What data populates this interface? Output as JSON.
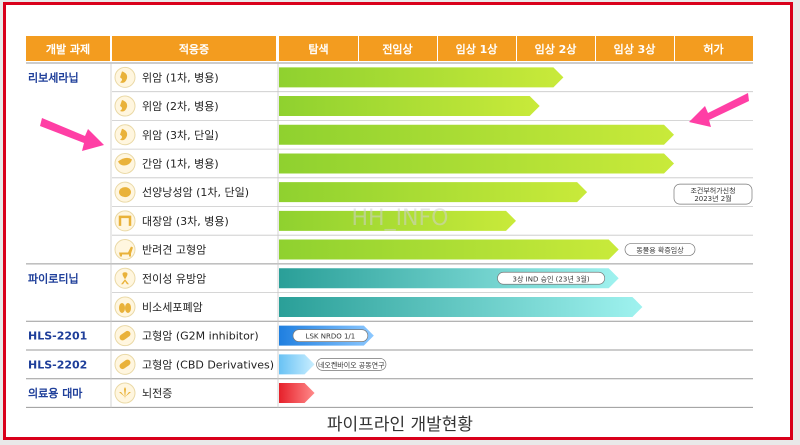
{
  "chart_data": {
    "type": "bar",
    "title": "",
    "caption": "파이프라인 개발현황",
    "watermark": "HH_INFO",
    "header": {
      "project": "개발 과제",
      "indication": "적응증"
    },
    "stages": [
      "탐색",
      "전임상",
      "임상 1상",
      "임상 2상",
      "임상 3상",
      "허가"
    ],
    "rows": [
      {
        "project": "리보세라닙",
        "indication": "위암 (1차, 병용)",
        "icon": "stomach-icon",
        "progress": 3.6,
        "color": "green"
      },
      {
        "project": "",
        "indication": "위암 (2차, 병용)",
        "icon": "stomach-icon",
        "progress": 3.3,
        "color": "green"
      },
      {
        "project": "",
        "indication": "위암 (3차, 단일)",
        "icon": "stomach-icon",
        "progress": 5.0,
        "color": "green"
      },
      {
        "project": "",
        "indication": "간암 (1차, 병용)",
        "icon": "liver-icon",
        "progress": 5.0,
        "color": "green"
      },
      {
        "project": "",
        "indication": "선양낭성암 (1차, 단일)",
        "icon": "gland-icon",
        "progress": 3.9,
        "color": "green",
        "note": [
          "조건부허가신청",
          "2023년 2월"
        ]
      },
      {
        "project": "",
        "indication": "대장암 (3차, 병용)",
        "icon": "colon-icon",
        "progress": 3.0,
        "color": "green"
      },
      {
        "project": "",
        "indication": "반려견 고형암",
        "icon": "dog-icon",
        "progress": 4.3,
        "color": "green",
        "note": [
          "동물용 확증임상"
        ]
      },
      {
        "project": "파이로티닙",
        "indication": "전이성 유방암",
        "icon": "ribbon-icon",
        "progress": 4.3,
        "color": "teal",
        "label": "3상 IND 승인 (23년 3월)"
      },
      {
        "project": "",
        "indication": "비소세포폐암",
        "icon": "lung-icon",
        "progress": 4.6,
        "color": "teal"
      },
      {
        "project": "HLS-2201",
        "indication": "고형암 (G2M inhibitor)",
        "icon": "pill-icon",
        "progress": 1.2,
        "color": "blue",
        "label": "LSK NRDO 1/1"
      },
      {
        "project": "HLS-2202",
        "indication": "고형암 (CBD Derivatives)",
        "icon": "pill-icon",
        "progress": 0.45,
        "color": "lightblue",
        "label": "네오켄바이오 공동연구"
      },
      {
        "project": "의료용 대마",
        "indication": "뇌전증",
        "icon": "cannabis-icon",
        "progress": 0.45,
        "color": "red"
      }
    ],
    "colors": {
      "header": "#f39c1f",
      "project_text": "#1f3f9a",
      "green": "#8fd12f",
      "teal": "#2fb5a8",
      "blue": "#1f7fe0",
      "lightblue": "#69c2f4",
      "red": "#e6202a",
      "arrow": "#ff3fa5"
    }
  }
}
